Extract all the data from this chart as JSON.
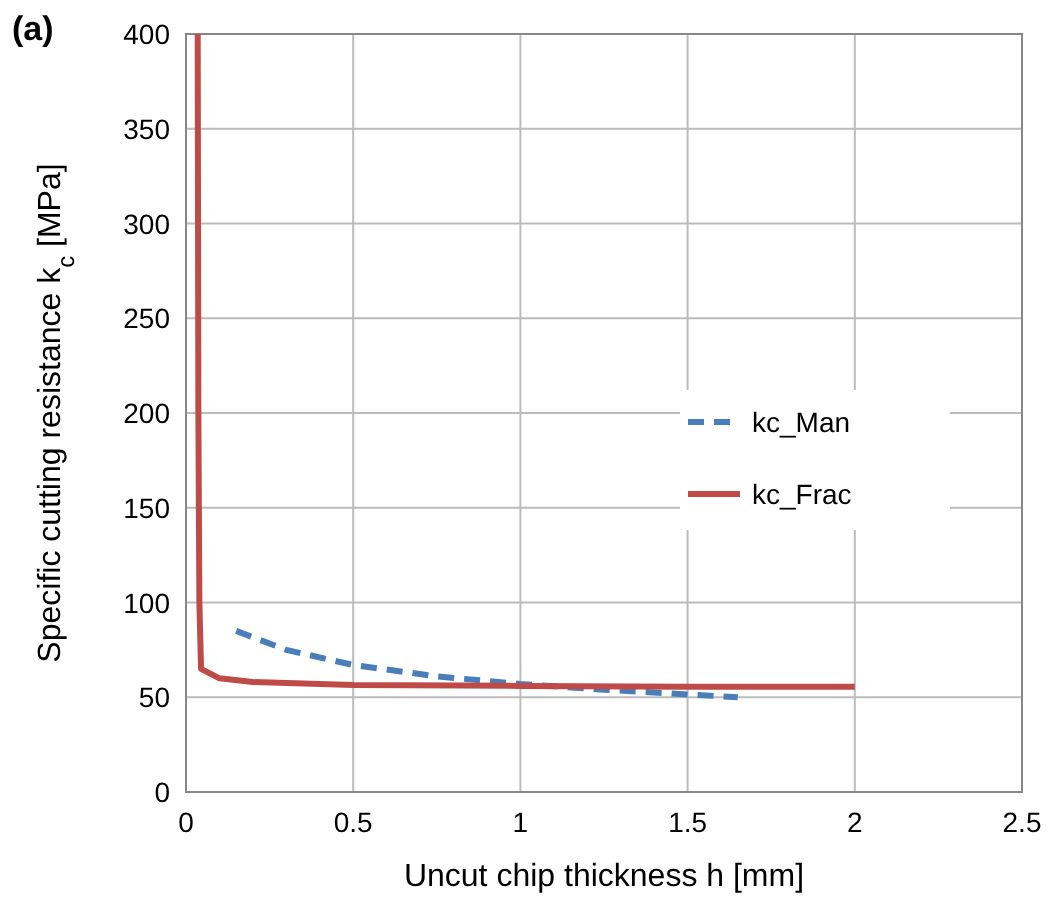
{
  "chart_data": {
    "type": "line",
    "title": "(a)",
    "xlabel": "Uncut chip thickness h [mm]",
    "ylabel": "Specific cutting resistance k$_{c}$ [MPa]",
    "xlim": [
      0,
      2.5
    ],
    "xticks": [
      0,
      0.5,
      1,
      1.5,
      2,
      2.5
    ],
    "ylim": [
      0,
      400
    ],
    "yticks": [
      0,
      50,
      100,
      150,
      200,
      250,
      300,
      350,
      400
    ],
    "grid": true,
    "legend": "right",
    "series": [
      {
        "name": "kc_Man",
        "color": "#4a7ebb",
        "line_style": "dashed",
        "x": [
          0.15,
          0.3,
          0.5,
          0.75,
          1,
          1.25,
          1.5,
          1.65
        ],
        "values": [
          85,
          75,
          67,
          61,
          57,
          54,
          51.5,
          50
        ]
      },
      {
        "name": "kc_Frac",
        "color": "#be4b48",
        "line_style": "solid",
        "x": [
          0.035,
          0.037,
          0.04,
          0.045,
          0.1,
          0.2,
          0.5,
          1,
          1.5,
          2
        ],
        "values": [
          400,
          200,
          100,
          65,
          60,
          58,
          56.5,
          56,
          55.5,
          55.5
        ]
      }
    ]
  }
}
